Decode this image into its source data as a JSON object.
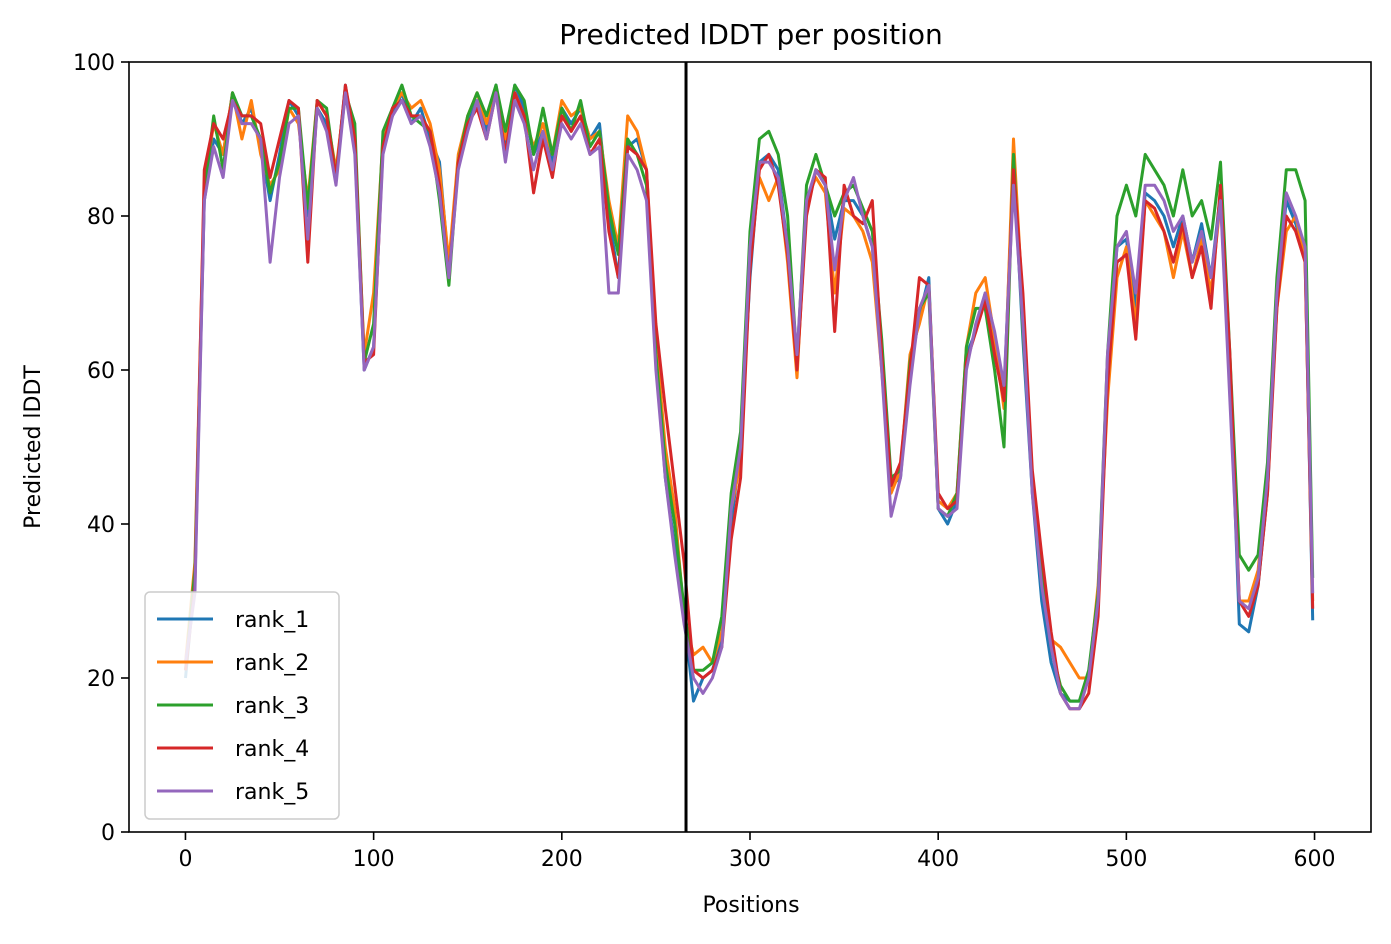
{
  "chart_data": {
    "type": "line",
    "title": "Predicted lDDT per position",
    "xlabel": "Positions",
    "ylabel": "Predicted lDDT",
    "xlim": [
      -30,
      630
    ],
    "ylim": [
      0,
      100
    ],
    "xticks": [
      0,
      100,
      200,
      300,
      400,
      500,
      600
    ],
    "yticks": [
      0,
      20,
      40,
      60,
      80,
      100
    ],
    "xtick_labels": [
      "0",
      "100",
      "200",
      "300",
      "400",
      "500",
      "600"
    ],
    "ytick_labels": [
      "0",
      "20",
      "40",
      "60",
      "80",
      "100"
    ],
    "grid": false,
    "legend_position": "lower-left",
    "vline_x": 266,
    "x": [
      0,
      5,
      10,
      15,
      20,
      25,
      30,
      35,
      40,
      45,
      50,
      55,
      60,
      65,
      70,
      75,
      80,
      85,
      90,
      95,
      100,
      105,
      110,
      115,
      120,
      125,
      130,
      135,
      140,
      145,
      150,
      155,
      160,
      165,
      170,
      175,
      180,
      185,
      190,
      195,
      200,
      205,
      210,
      215,
      220,
      225,
      230,
      235,
      240,
      245,
      250,
      255,
      260,
      265,
      270,
      275,
      280,
      285,
      290,
      295,
      300,
      305,
      310,
      315,
      320,
      325,
      330,
      335,
      340,
      345,
      350,
      355,
      360,
      365,
      370,
      375,
      380,
      385,
      390,
      395,
      400,
      405,
      410,
      415,
      420,
      425,
      430,
      435,
      440,
      445,
      450,
      455,
      460,
      465,
      470,
      475,
      480,
      485,
      490,
      495,
      500,
      505,
      510,
      515,
      520,
      525,
      530,
      535,
      540,
      545,
      550,
      555,
      560,
      565,
      570,
      575,
      580,
      585,
      590,
      595,
      599
    ],
    "series": [
      {
        "name": "rank_1",
        "color": "#1f77b4",
        "values": [
          20,
          33,
          82,
          90,
          88,
          96,
          92,
          94,
          89,
          82,
          88,
          95,
          93,
          80,
          94,
          92,
          85,
          97,
          89,
          60,
          63,
          90,
          93,
          96,
          92,
          94,
          90,
          87,
          73,
          87,
          92,
          95,
          91,
          97,
          89,
          97,
          94,
          88,
          91,
          87,
          94,
          92,
          94,
          90,
          92,
          80,
          72,
          89,
          90,
          86,
          62,
          46,
          37,
          28,
          17,
          20,
          21,
          25,
          40,
          50,
          72,
          87,
          88,
          86,
          76,
          60,
          81,
          86,
          84,
          77,
          82,
          82,
          80,
          76,
          62,
          45,
          46,
          60,
          67,
          72,
          42,
          40,
          43,
          62,
          65,
          70,
          62,
          57,
          87,
          64,
          44,
          30,
          22,
          18,
          17,
          17,
          20,
          30,
          60,
          76,
          77,
          68,
          83,
          82,
          80,
          76,
          80,
          74,
          79,
          72,
          83,
          60,
          27,
          26,
          32,
          44,
          70,
          82,
          79,
          75,
          27.5
        ]
      },
      {
        "name": "rank_2",
        "color": "#ff7f0e",
        "values": [
          22,
          35,
          84,
          92,
          88,
          96,
          90,
          95,
          88,
          84,
          86,
          94,
          92,
          82,
          95,
          93,
          86,
          96,
          90,
          62,
          70,
          90,
          94,
          96,
          94,
          95,
          92,
          86,
          74,
          88,
          93,
          96,
          92,
          96,
          90,
          96,
          93,
          89,
          92,
          88,
          95,
          93,
          94,
          90,
          91,
          82,
          76,
          93,
          91,
          86,
          64,
          50,
          42,
          28,
          23,
          24,
          22,
          26,
          42,
          48,
          75,
          85,
          82,
          85,
          74,
          59,
          82,
          85,
          83,
          70,
          81,
          80,
          78,
          74,
          60,
          44,
          47,
          62,
          66,
          71,
          43,
          42,
          44,
          63,
          70,
          72,
          64,
          55,
          90,
          68,
          46,
          34,
          25,
          24,
          22,
          20,
          20,
          32,
          56,
          72,
          76,
          66,
          82,
          80,
          78,
          72,
          78,
          72,
          77,
          70,
          82,
          60,
          30,
          30,
          34,
          46,
          68,
          78,
          80,
          74,
          30
        ]
      },
      {
        "name": "rank_3",
        "color": "#2ca02c",
        "values": [
          21,
          34,
          83,
          93,
          86,
          96,
          93,
          93,
          90,
          83,
          87,
          94,
          94,
          81,
          95,
          94,
          85,
          96,
          92,
          61,
          66,
          91,
          94,
          97,
          93,
          92,
          91,
          82,
          71,
          87,
          93,
          96,
          93,
          97,
          91,
          97,
          95,
          88,
          94,
          88,
          94,
          91,
          95,
          89,
          91,
          81,
          75,
          90,
          88,
          84,
          62,
          48,
          40,
          29,
          21,
          21,
          22,
          28,
          44,
          52,
          78,
          90,
          91,
          88,
          80,
          61,
          84,
          88,
          84,
          80,
          83,
          84,
          81,
          78,
          64,
          46,
          47,
          61,
          68,
          70,
          42,
          41,
          44,
          63,
          68,
          68,
          60,
          50,
          88,
          65,
          46,
          34,
          24,
          19,
          17,
          17,
          21,
          31,
          62,
          80,
          84,
          80,
          88,
          86,
          84,
          80,
          86,
          80,
          82,
          77,
          87,
          62,
          36,
          34,
          36,
          48,
          72,
          86,
          86,
          82,
          33
        ]
      },
      {
        "name": "rank_4",
        "color": "#d62728",
        "values": [
          21,
          32,
          86,
          92,
          90,
          95,
          93,
          93,
          92,
          85,
          90,
          95,
          94,
          74,
          95,
          93,
          85,
          97,
          90,
          61,
          62,
          89,
          94,
          95,
          93,
          93,
          91,
          84,
          72,
          87,
          92,
          94,
          90,
          96,
          88,
          96,
          93,
          83,
          90,
          85,
          93,
          91,
          93,
          88,
          90,
          78,
          72,
          89,
          88,
          86,
          66,
          55,
          45,
          35,
          21,
          20,
          21,
          24,
          38,
          46,
          73,
          86,
          88,
          84,
          75,
          60,
          80,
          86,
          85,
          65,
          84,
          80,
          79,
          82,
          62,
          45,
          48,
          60,
          72,
          71,
          44,
          42,
          43,
          61,
          65,
          69,
          62,
          56,
          86,
          70,
          47,
          36,
          26,
          18,
          16,
          16,
          18,
          28,
          58,
          74,
          75,
          64,
          82,
          81,
          78,
          74,
          79,
          72,
          76,
          68,
          84,
          62,
          30,
          28,
          32,
          44,
          68,
          80,
          78,
          74,
          29
        ]
      },
      {
        "name": "rank_5",
        "color": "#9467bd",
        "values": [
          22,
          31,
          82,
          89,
          85,
          95,
          92,
          92,
          90,
          74,
          85,
          92,
          93,
          77,
          94,
          91,
          84,
          96,
          88,
          60,
          63,
          88,
          93,
          95,
          92,
          93,
          89,
          83,
          72,
          86,
          91,
          95,
          90,
          96,
          87,
          95,
          92,
          86,
          91,
          86,
          92,
          90,
          92,
          88,
          89,
          70,
          70,
          88,
          86,
          82,
          60,
          46,
          36,
          27,
          20,
          18,
          20,
          24,
          42,
          50,
          76,
          87,
          87,
          85,
          76,
          62,
          82,
          86,
          84,
          73,
          82,
          85,
          80,
          76,
          60,
          41,
          46,
          58,
          68,
          71,
          42,
          41,
          42,
          60,
          66,
          70,
          65,
          58,
          84,
          66,
          44,
          32,
          24,
          18,
          16,
          16,
          20,
          30,
          62,
          76,
          78,
          70,
          84,
          84,
          82,
          78,
          80,
          74,
          78,
          72,
          82,
          56,
          30,
          29,
          33,
          46,
          70,
          83,
          80,
          76,
          31
        ]
      }
    ]
  }
}
